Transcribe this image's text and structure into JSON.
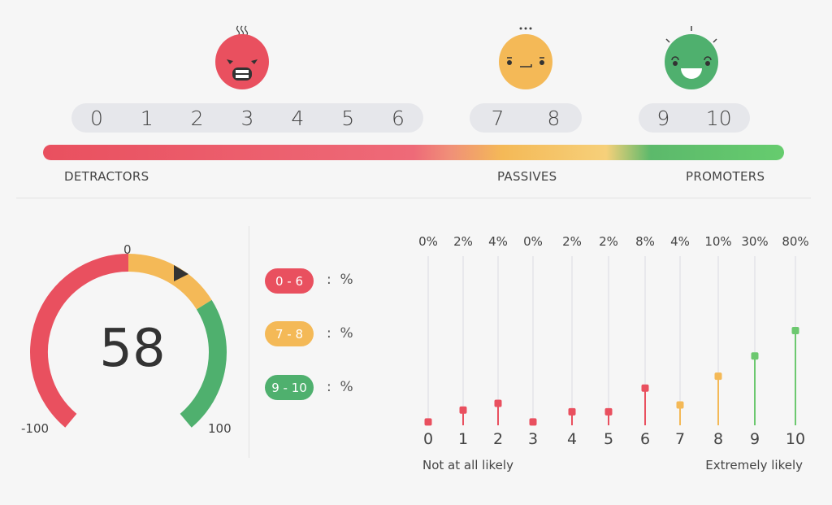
{
  "colors": {
    "detractor": "#e9505f",
    "passive": "#f4b957",
    "promoter": "#4fb06e",
    "promoter_light": "#6cc86f"
  },
  "faces": [
    {
      "name": "angry-face-icon",
      "color": "#e9505f"
    },
    {
      "name": "neutral-face-icon",
      "color": "#f4b957"
    },
    {
      "name": "happy-face-icon",
      "color": "#4fb06e"
    }
  ],
  "scale": {
    "detractors": [
      "0",
      "1",
      "2",
      "3",
      "4",
      "5",
      "6"
    ],
    "passives": [
      "7",
      "8"
    ],
    "promoters": [
      "9",
      "10"
    ]
  },
  "categories": {
    "detractors": "DETRACTORS",
    "passives": "PASSIVES",
    "promoters": "PROMOTERS"
  },
  "gauge": {
    "value": "58",
    "min": "-100",
    "mid": "0",
    "max": "100"
  },
  "legend": [
    {
      "range": "0 - 6",
      "sep": ":",
      "unit": "%",
      "color": "#e9505f"
    },
    {
      "range": "7 - 8",
      "sep": ":",
      "unit": "%",
      "color": "#f4b957"
    },
    {
      "range": "9 - 10",
      "sep": ":",
      "unit": "%",
      "color": "#4fb06e"
    }
  ],
  "chart_data": {
    "type": "lollipop",
    "categories": [
      "0",
      "1",
      "2",
      "3",
      "4",
      "5",
      "6",
      "7",
      "8",
      "9",
      "10"
    ],
    "value_labels": [
      "0%",
      "2%",
      "4%",
      "0%",
      "2%",
      "2%",
      "8%",
      "4%",
      "10%",
      "30%",
      "80%"
    ],
    "values": [
      0,
      2,
      4,
      0,
      2,
      2,
      8,
      4,
      10,
      30,
      80
    ],
    "marker_levels": [
      0.02,
      0.09,
      0.13,
      0.02,
      0.08,
      0.08,
      0.22,
      0.12,
      0.29,
      0.41,
      0.56
    ],
    "colors": [
      "#e9505f",
      "#e9505f",
      "#e9505f",
      "#e9505f",
      "#e9505f",
      "#e9505f",
      "#e9505f",
      "#f4b957",
      "#f4b957",
      "#6cc86f",
      "#6cc86f"
    ],
    "xlabel_left": "Not at all likely",
    "xlabel_right": "Extremely likely"
  }
}
